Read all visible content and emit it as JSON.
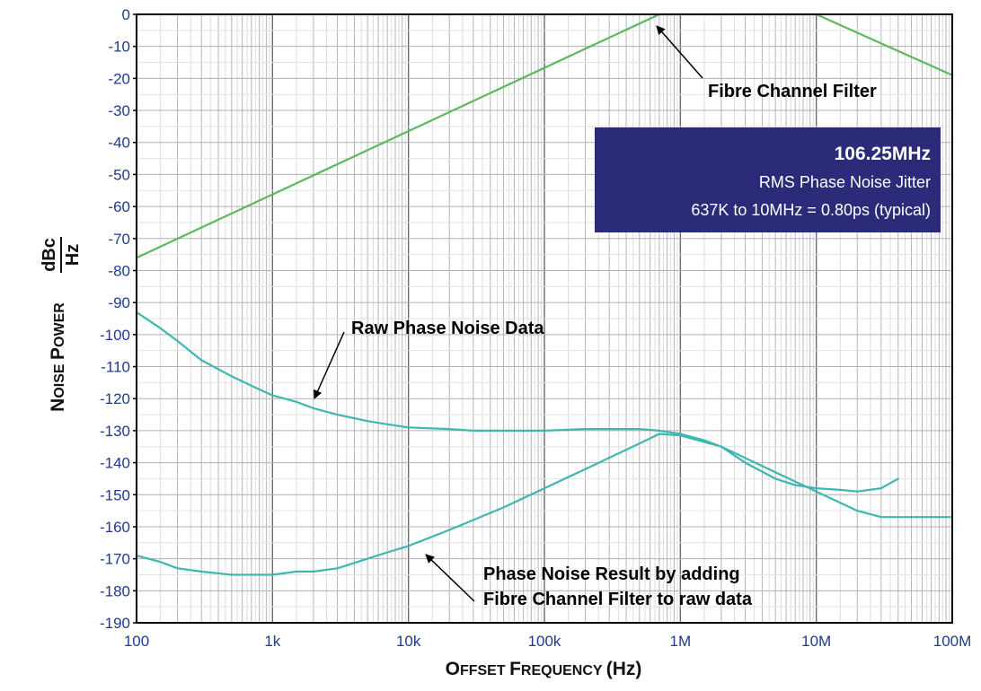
{
  "chart_data": {
    "type": "line",
    "title": "",
    "xlabel": "Offset Frequency (Hz)",
    "xlabel_parts": [
      {
        "big": "O",
        "small": "FFSET "
      },
      {
        "big": "F",
        "small": "REQUENCY "
      },
      {
        "big": "(Hz)",
        "small": ""
      }
    ],
    "ylabel_parts": [
      {
        "big": "N",
        "small": "OISE "
      },
      {
        "big": "P",
        "small": "OWER"
      }
    ],
    "ylabel_unit_num": "dBc",
    "ylabel_unit_den": "Hz",
    "x_scale": "log",
    "xlim": [
      100,
      100000000
    ],
    "ylim": [
      -190,
      0
    ],
    "x_ticks": [
      {
        "value": 100,
        "label": "100"
      },
      {
        "value": 1000,
        "label": "1k"
      },
      {
        "value": 10000,
        "label": "10k"
      },
      {
        "value": 100000,
        "label": "100k"
      },
      {
        "value": 1000000,
        "label": "1M"
      },
      {
        "value": 10000000,
        "label": "10M"
      },
      {
        "value": 100000000,
        "label": "100M"
      }
    ],
    "y_ticks": [
      0,
      -10,
      -20,
      -30,
      -40,
      -50,
      -60,
      -70,
      -80,
      -90,
      -100,
      -110,
      -120,
      -130,
      -140,
      -150,
      -160,
      -170,
      -180,
      -190
    ],
    "grid": true,
    "series": [
      {
        "color": "#5cb85c",
        "x": [
          100,
          700000,
          10000000,
          100000000
        ],
        "y": [
          -76,
          0,
          0,
          -19
        ]
      },
      {
        "color": "#3fb6b0",
        "x": [
          100,
          150,
          200,
          300,
          500,
          700,
          1000,
          1500,
          2000,
          3000,
          5000,
          7000,
          10000,
          20000,
          30000,
          50000,
          100000,
          200000,
          300000,
          500000,
          700000,
          1000000,
          1500000,
          2000000,
          3000000,
          5000000,
          7000000,
          10000000,
          15000000,
          20000000,
          30000000,
          40000000
        ],
        "y": [
          -93,
          -98,
          -102,
          -108,
          -113,
          -116,
          -119,
          -121,
          -123,
          -125,
          -127,
          -128,
          -129,
          -129.5,
          -130,
          -130,
          -130,
          -129.5,
          -129.5,
          -129.5,
          -130,
          -131,
          -133,
          -135,
          -140,
          -145,
          -147,
          -148,
          -148.5,
          -149,
          -148,
          -145
        ]
      },
      {
        "color": "#3fb6b0",
        "x": [
          100,
          150,
          200,
          300,
          500,
          700,
          1000,
          1500,
          2000,
          3000,
          5000,
          7000,
          10000,
          20000,
          50000,
          100000,
          200000,
          500000,
          700000,
          1000000,
          2000000,
          5000000,
          10000000,
          20000000,
          30000000,
          40000000,
          100000000
        ],
        "y": [
          -169,
          -171,
          -173,
          -174,
          -175,
          -175,
          -175,
          -174,
          -174,
          -173,
          -170,
          -168,
          -166,
          -161,
          -154,
          -148,
          -142,
          -134,
          -131,
          -131.5,
          -135,
          -143,
          -149,
          -155,
          -157,
          -157,
          -157
        ]
      }
    ],
    "annotations": [
      {
        "id": "fibre",
        "lines": [
          "Fibre Channel Filter"
        ],
        "arrow_to": [
          700000,
          0
        ]
      },
      {
        "id": "raw",
        "lines": [
          "Raw Phase Noise Data"
        ],
        "arrow_to": [
          1700,
          -122
        ]
      },
      {
        "id": "result",
        "lines": [
          "Phase Noise Result by adding",
          "Fibre Channel Filter to raw data"
        ],
        "arrow_to": [
          10000,
          -166
        ]
      }
    ],
    "info_box": {
      "bg": "#2b2b7a",
      "title": "106.25MHz",
      "line1": "RMS Phase Noise Jitter",
      "line2": "637K to 10MHz = 0.80ps (typical)"
    }
  }
}
